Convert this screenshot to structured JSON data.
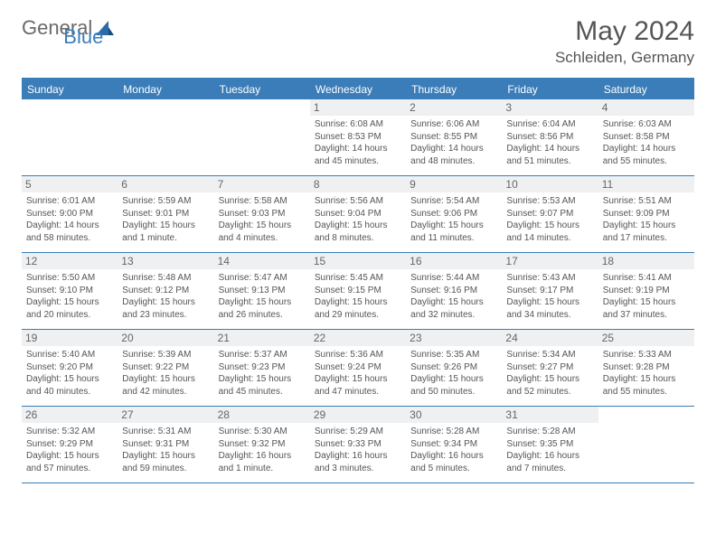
{
  "brand": {
    "general": "General",
    "blue": "Blue"
  },
  "title": {
    "month": "May 2024",
    "location": "Schleiden, Germany"
  },
  "colors": {
    "accent": "#3a7db8",
    "daybar": "#eef0f2",
    "text": "#555"
  },
  "dow": [
    "Sunday",
    "Monday",
    "Tuesday",
    "Wednesday",
    "Thursday",
    "Friday",
    "Saturday"
  ],
  "weeks": [
    [
      {
        "n": "",
        "sr": "",
        "ss": "",
        "dl": ""
      },
      {
        "n": "",
        "sr": "",
        "ss": "",
        "dl": ""
      },
      {
        "n": "",
        "sr": "",
        "ss": "",
        "dl": ""
      },
      {
        "n": "1",
        "sr": "Sunrise: 6:08 AM",
        "ss": "Sunset: 8:53 PM",
        "dl": "Daylight: 14 hours and 45 minutes."
      },
      {
        "n": "2",
        "sr": "Sunrise: 6:06 AM",
        "ss": "Sunset: 8:55 PM",
        "dl": "Daylight: 14 hours and 48 minutes."
      },
      {
        "n": "3",
        "sr": "Sunrise: 6:04 AM",
        "ss": "Sunset: 8:56 PM",
        "dl": "Daylight: 14 hours and 51 minutes."
      },
      {
        "n": "4",
        "sr": "Sunrise: 6:03 AM",
        "ss": "Sunset: 8:58 PM",
        "dl": "Daylight: 14 hours and 55 minutes."
      }
    ],
    [
      {
        "n": "5",
        "sr": "Sunrise: 6:01 AM",
        "ss": "Sunset: 9:00 PM",
        "dl": "Daylight: 14 hours and 58 minutes."
      },
      {
        "n": "6",
        "sr": "Sunrise: 5:59 AM",
        "ss": "Sunset: 9:01 PM",
        "dl": "Daylight: 15 hours and 1 minute."
      },
      {
        "n": "7",
        "sr": "Sunrise: 5:58 AM",
        "ss": "Sunset: 9:03 PM",
        "dl": "Daylight: 15 hours and 4 minutes."
      },
      {
        "n": "8",
        "sr": "Sunrise: 5:56 AM",
        "ss": "Sunset: 9:04 PM",
        "dl": "Daylight: 15 hours and 8 minutes."
      },
      {
        "n": "9",
        "sr": "Sunrise: 5:54 AM",
        "ss": "Sunset: 9:06 PM",
        "dl": "Daylight: 15 hours and 11 minutes."
      },
      {
        "n": "10",
        "sr": "Sunrise: 5:53 AM",
        "ss": "Sunset: 9:07 PM",
        "dl": "Daylight: 15 hours and 14 minutes."
      },
      {
        "n": "11",
        "sr": "Sunrise: 5:51 AM",
        "ss": "Sunset: 9:09 PM",
        "dl": "Daylight: 15 hours and 17 minutes."
      }
    ],
    [
      {
        "n": "12",
        "sr": "Sunrise: 5:50 AM",
        "ss": "Sunset: 9:10 PM",
        "dl": "Daylight: 15 hours and 20 minutes."
      },
      {
        "n": "13",
        "sr": "Sunrise: 5:48 AM",
        "ss": "Sunset: 9:12 PM",
        "dl": "Daylight: 15 hours and 23 minutes."
      },
      {
        "n": "14",
        "sr": "Sunrise: 5:47 AM",
        "ss": "Sunset: 9:13 PM",
        "dl": "Daylight: 15 hours and 26 minutes."
      },
      {
        "n": "15",
        "sr": "Sunrise: 5:45 AM",
        "ss": "Sunset: 9:15 PM",
        "dl": "Daylight: 15 hours and 29 minutes."
      },
      {
        "n": "16",
        "sr": "Sunrise: 5:44 AM",
        "ss": "Sunset: 9:16 PM",
        "dl": "Daylight: 15 hours and 32 minutes."
      },
      {
        "n": "17",
        "sr": "Sunrise: 5:43 AM",
        "ss": "Sunset: 9:17 PM",
        "dl": "Daylight: 15 hours and 34 minutes."
      },
      {
        "n": "18",
        "sr": "Sunrise: 5:41 AM",
        "ss": "Sunset: 9:19 PM",
        "dl": "Daylight: 15 hours and 37 minutes."
      }
    ],
    [
      {
        "n": "19",
        "sr": "Sunrise: 5:40 AM",
        "ss": "Sunset: 9:20 PM",
        "dl": "Daylight: 15 hours and 40 minutes."
      },
      {
        "n": "20",
        "sr": "Sunrise: 5:39 AM",
        "ss": "Sunset: 9:22 PM",
        "dl": "Daylight: 15 hours and 42 minutes."
      },
      {
        "n": "21",
        "sr": "Sunrise: 5:37 AM",
        "ss": "Sunset: 9:23 PM",
        "dl": "Daylight: 15 hours and 45 minutes."
      },
      {
        "n": "22",
        "sr": "Sunrise: 5:36 AM",
        "ss": "Sunset: 9:24 PM",
        "dl": "Daylight: 15 hours and 47 minutes."
      },
      {
        "n": "23",
        "sr": "Sunrise: 5:35 AM",
        "ss": "Sunset: 9:26 PM",
        "dl": "Daylight: 15 hours and 50 minutes."
      },
      {
        "n": "24",
        "sr": "Sunrise: 5:34 AM",
        "ss": "Sunset: 9:27 PM",
        "dl": "Daylight: 15 hours and 52 minutes."
      },
      {
        "n": "25",
        "sr": "Sunrise: 5:33 AM",
        "ss": "Sunset: 9:28 PM",
        "dl": "Daylight: 15 hours and 55 minutes."
      }
    ],
    [
      {
        "n": "26",
        "sr": "Sunrise: 5:32 AM",
        "ss": "Sunset: 9:29 PM",
        "dl": "Daylight: 15 hours and 57 minutes."
      },
      {
        "n": "27",
        "sr": "Sunrise: 5:31 AM",
        "ss": "Sunset: 9:31 PM",
        "dl": "Daylight: 15 hours and 59 minutes."
      },
      {
        "n": "28",
        "sr": "Sunrise: 5:30 AM",
        "ss": "Sunset: 9:32 PM",
        "dl": "Daylight: 16 hours and 1 minute."
      },
      {
        "n": "29",
        "sr": "Sunrise: 5:29 AM",
        "ss": "Sunset: 9:33 PM",
        "dl": "Daylight: 16 hours and 3 minutes."
      },
      {
        "n": "30",
        "sr": "Sunrise: 5:28 AM",
        "ss": "Sunset: 9:34 PM",
        "dl": "Daylight: 16 hours and 5 minutes."
      },
      {
        "n": "31",
        "sr": "Sunrise: 5:28 AM",
        "ss": "Sunset: 9:35 PM",
        "dl": "Daylight: 16 hours and 7 minutes."
      },
      {
        "n": "",
        "sr": "",
        "ss": "",
        "dl": ""
      }
    ]
  ]
}
